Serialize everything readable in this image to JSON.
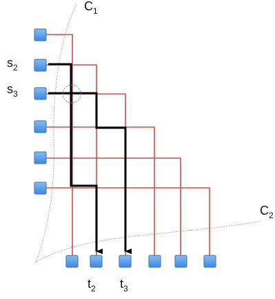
{
  "labels": {
    "c1": "C",
    "c1_sub": "1",
    "c2": "C",
    "c2_sub": "2",
    "s2": "s",
    "s2_sub": "2",
    "s3": "s",
    "s3_sub": "3",
    "t2": "t",
    "t2_sub": "2",
    "t3": "t",
    "t3_sub": "3"
  },
  "colors": {
    "wire": "#c8504a",
    "path": "#000000",
    "node_fill": "#5a9be8",
    "curve": "#9a9a9a",
    "highlight_circle": "#5a8ad0"
  }
}
